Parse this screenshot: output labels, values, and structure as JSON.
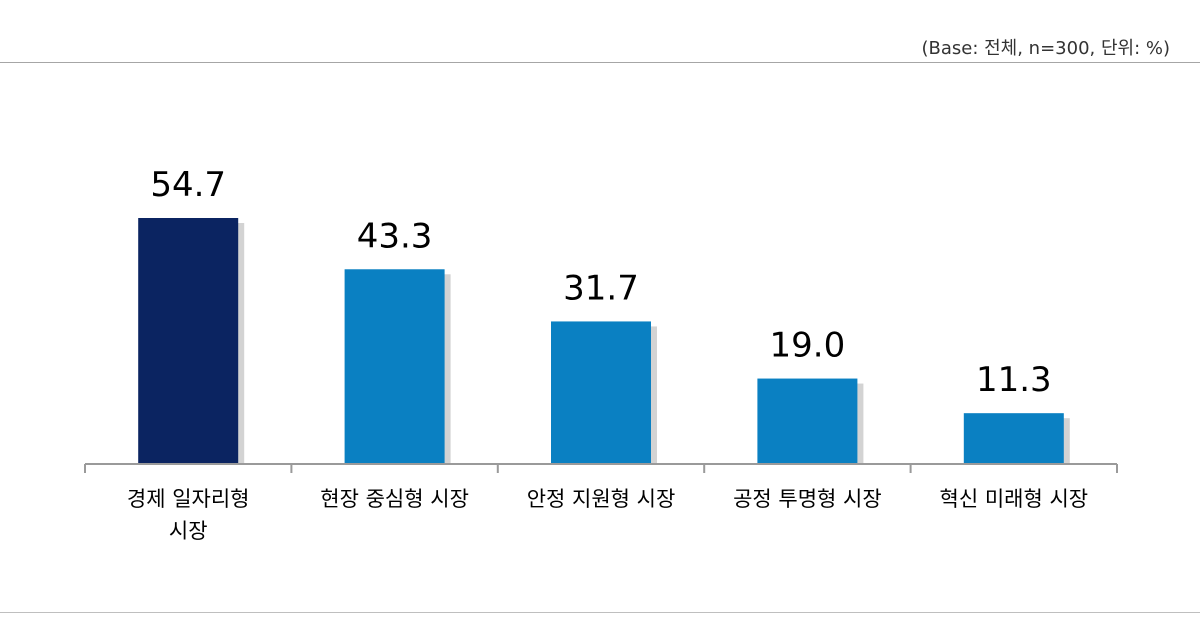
{
  "note": "(Base: 전체, n=300, 단위: %)",
  "chart_data": {
    "type": "bar",
    "categories": [
      "경제 일자리형 시장",
      "현장 중심형 시장",
      "안정 지원형 시장",
      "공정 투명형 시장",
      "혁신 미래형 시장"
    ],
    "category_lines": [
      [
        "경제 일자리형",
        "시장"
      ],
      [
        "현장 중심형 시장"
      ],
      [
        "안정 지원형 시장"
      ],
      [
        "공정 투명형 시장"
      ],
      [
        "혁신 미래형 시장"
      ]
    ],
    "values": [
      54.7,
      43.3,
      31.7,
      19.0,
      11.3
    ],
    "value_labels": [
      "54.7",
      "43.3",
      "31.7",
      "19.0",
      "11.3"
    ],
    "highlight_color": "#0b2461",
    "bar_color": "#0a80c2",
    "shadow_color": "#c8c8c8",
    "ylim": [
      0,
      54.7
    ],
    "grid": false,
    "legend": "none",
    "title": "",
    "xlabel": "",
    "ylabel": ""
  }
}
